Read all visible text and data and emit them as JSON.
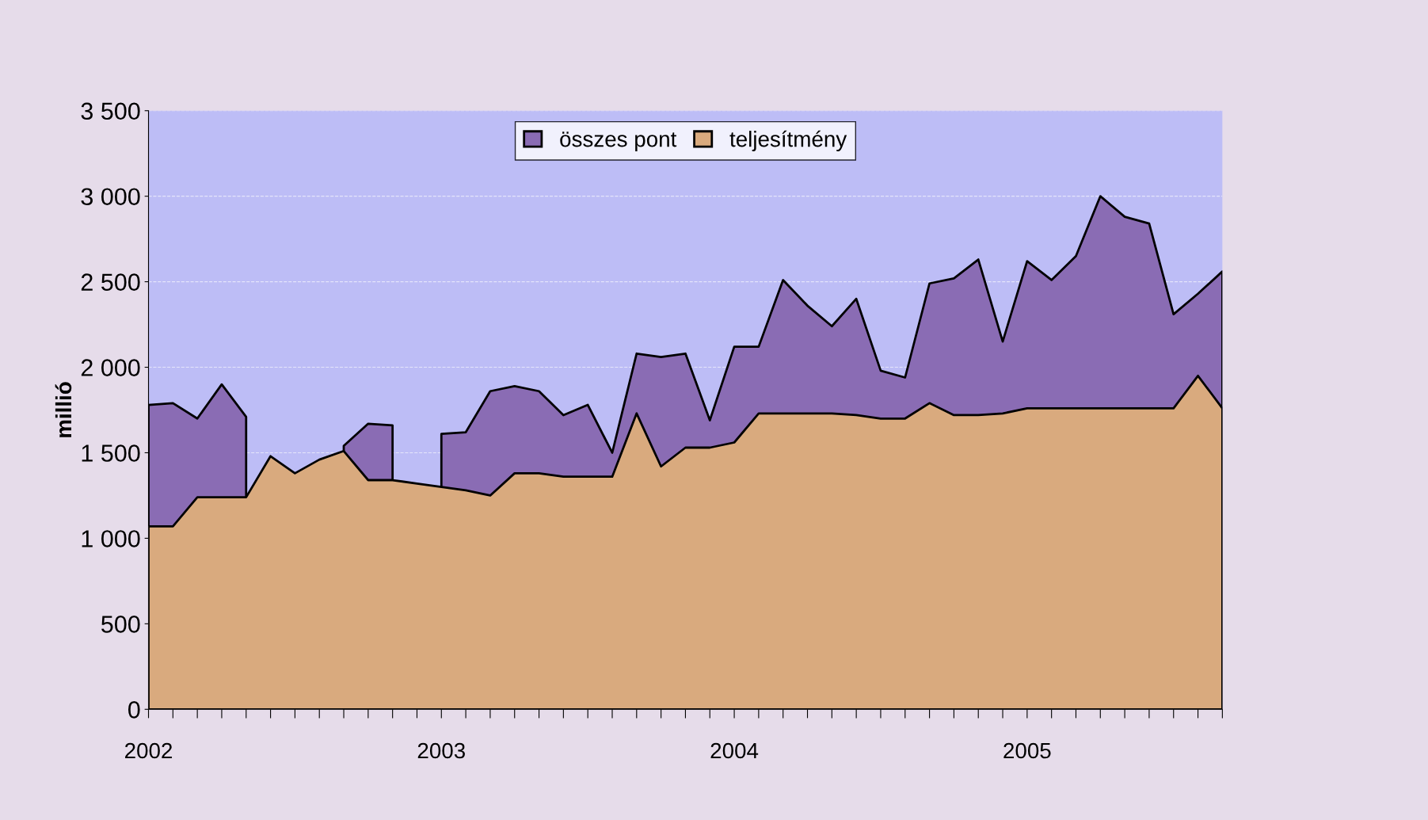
{
  "chart_data": {
    "type": "area",
    "ylabel": "millió",
    "categories": [
      "2002",
      null,
      null,
      null,
      null,
      null,
      null,
      null,
      null,
      null,
      null,
      null,
      "2003",
      null,
      null,
      null,
      null,
      null,
      null,
      null,
      null,
      null,
      null,
      null,
      "2004",
      null,
      null,
      null,
      null,
      null,
      null,
      null,
      null,
      null,
      null,
      null,
      "2005",
      null,
      null,
      null,
      null,
      null,
      null,
      null,
      null
    ],
    "series": [
      {
        "name": "összes pont",
        "color": "#8a6cb4",
        "values": [
          1780,
          1790,
          1700,
          1900,
          1710,
          null,
          null,
          null,
          1540,
          1670,
          1660,
          null,
          1610,
          1620,
          1860,
          1890,
          1860,
          1720,
          1780,
          1500,
          2080,
          2060,
          2080,
          1690,
          2120,
          2120,
          2510,
          2360,
          2240,
          2400,
          1980,
          1940,
          2490,
          2520,
          2630,
          2150,
          2620,
          2510,
          2650,
          3000,
          2880,
          2840,
          2310,
          2430,
          2560
        ]
      },
      {
        "name": "teljesítmény",
        "color": "#d9aa7e",
        "values": [
          1070,
          1070,
          1240,
          1240,
          1240,
          1480,
          1380,
          1460,
          1510,
          1340,
          1340,
          1320,
          1300,
          1280,
          1250,
          1380,
          1380,
          1360,
          1360,
          1360,
          1730,
          1420,
          1530,
          1530,
          1560,
          1730,
          1730,
          1730,
          1730,
          1720,
          1700,
          1700,
          1790,
          1720,
          1720,
          1730,
          1760,
          1760,
          1760,
          1760,
          1760,
          1760,
          1760,
          1950,
          1760
        ]
      }
    ],
    "ylim": [
      0,
      3500
    ],
    "yticks": [
      0,
      {
        "value": 500,
        "label": "500"
      },
      {
        "value": 1000,
        "label": "1 000"
      },
      {
        "value": 1500,
        "label": "1 500"
      },
      {
        "value": 2000,
        "label": "2 000"
      },
      {
        "value": 2500,
        "label": "2 500"
      },
      {
        "value": 3000,
        "label": "3 000"
      },
      {
        "value": 3500,
        "label": "3 500"
      }
    ],
    "grid": "y",
    "legend": "top"
  }
}
